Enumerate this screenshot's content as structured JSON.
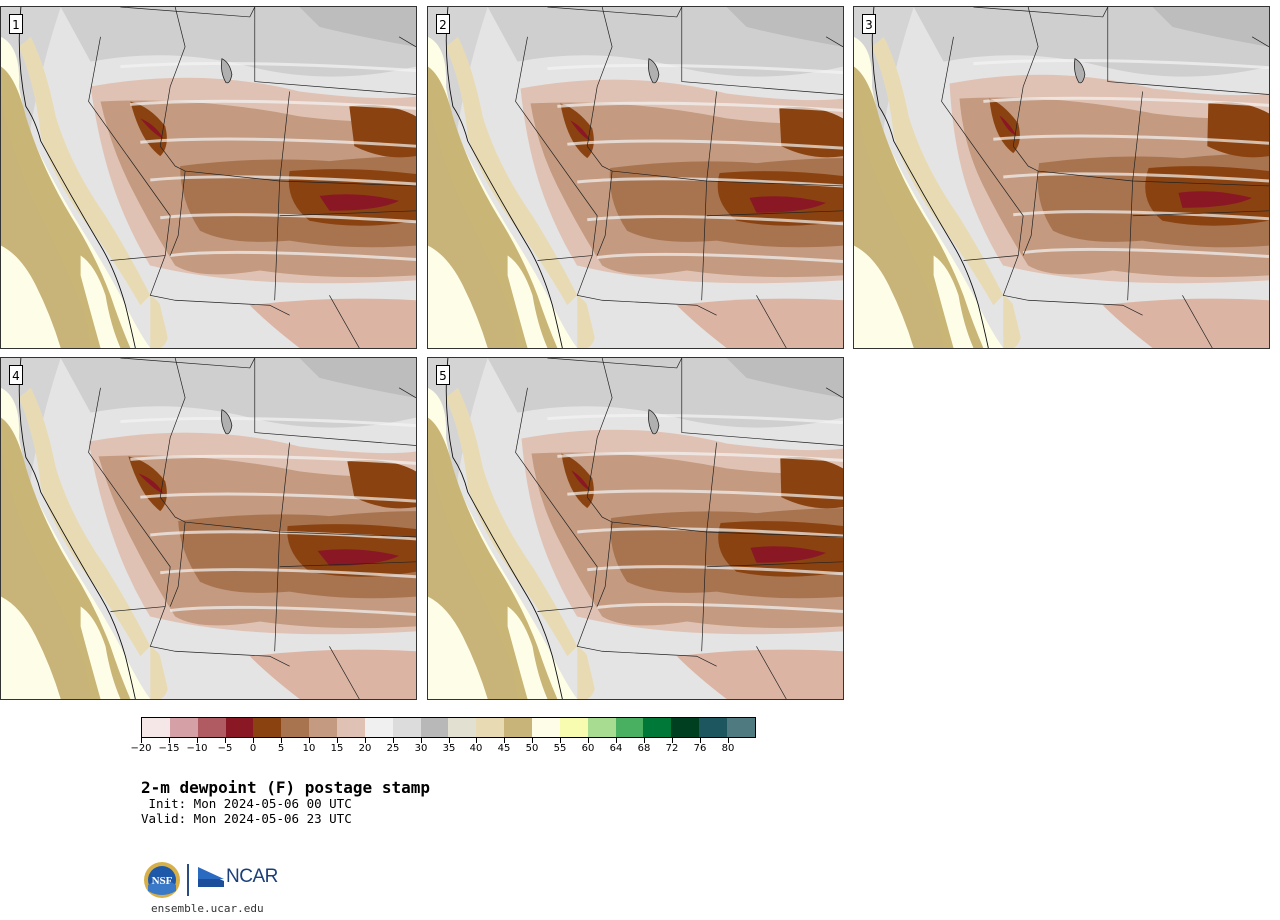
{
  "panels": [
    {
      "label": "1",
      "variant": 0
    },
    {
      "label": "2",
      "variant": 1
    },
    {
      "label": "3",
      "variant": 2
    },
    {
      "label": "4",
      "variant": 3
    },
    {
      "label": "5",
      "variant": 4
    }
  ],
  "colorbar": {
    "colors": [
      "#f5e6e8",
      "#d5a0a6",
      "#b05a62",
      "#8a1824",
      "#8a4310",
      "#a87450",
      "#c49a80",
      "#e0c2b4",
      "#f0f0f0",
      "#dcdcdc",
      "#b8b8b8",
      "#e2e0d0",
      "#e8dbb4",
      "#c8b478",
      "#fefee8",
      "#f8fcb0",
      "#a8dc90",
      "#48b060",
      "#007838",
      "#004020",
      "#1e5660",
      "#4e7a80"
    ],
    "tick_labels": [
      "−20",
      "−15",
      "−10",
      "−5",
      "0",
      "5",
      "10",
      "15",
      "20",
      "25",
      "30",
      "35",
      "40",
      "45",
      "50",
      "55",
      "60",
      "64",
      "68",
      "72",
      "76",
      "80"
    ]
  },
  "title": "2-m dewpoint (F) postage stamp",
  "init": " Init: Mon 2024-05-06 00 UTC",
  "valid": "Valid: Mon 2024-05-06 23 UTC",
  "logo": {
    "nsf": "NSF",
    "ncar": "NCAR"
  },
  "url": "ensemble.ucar.edu"
}
